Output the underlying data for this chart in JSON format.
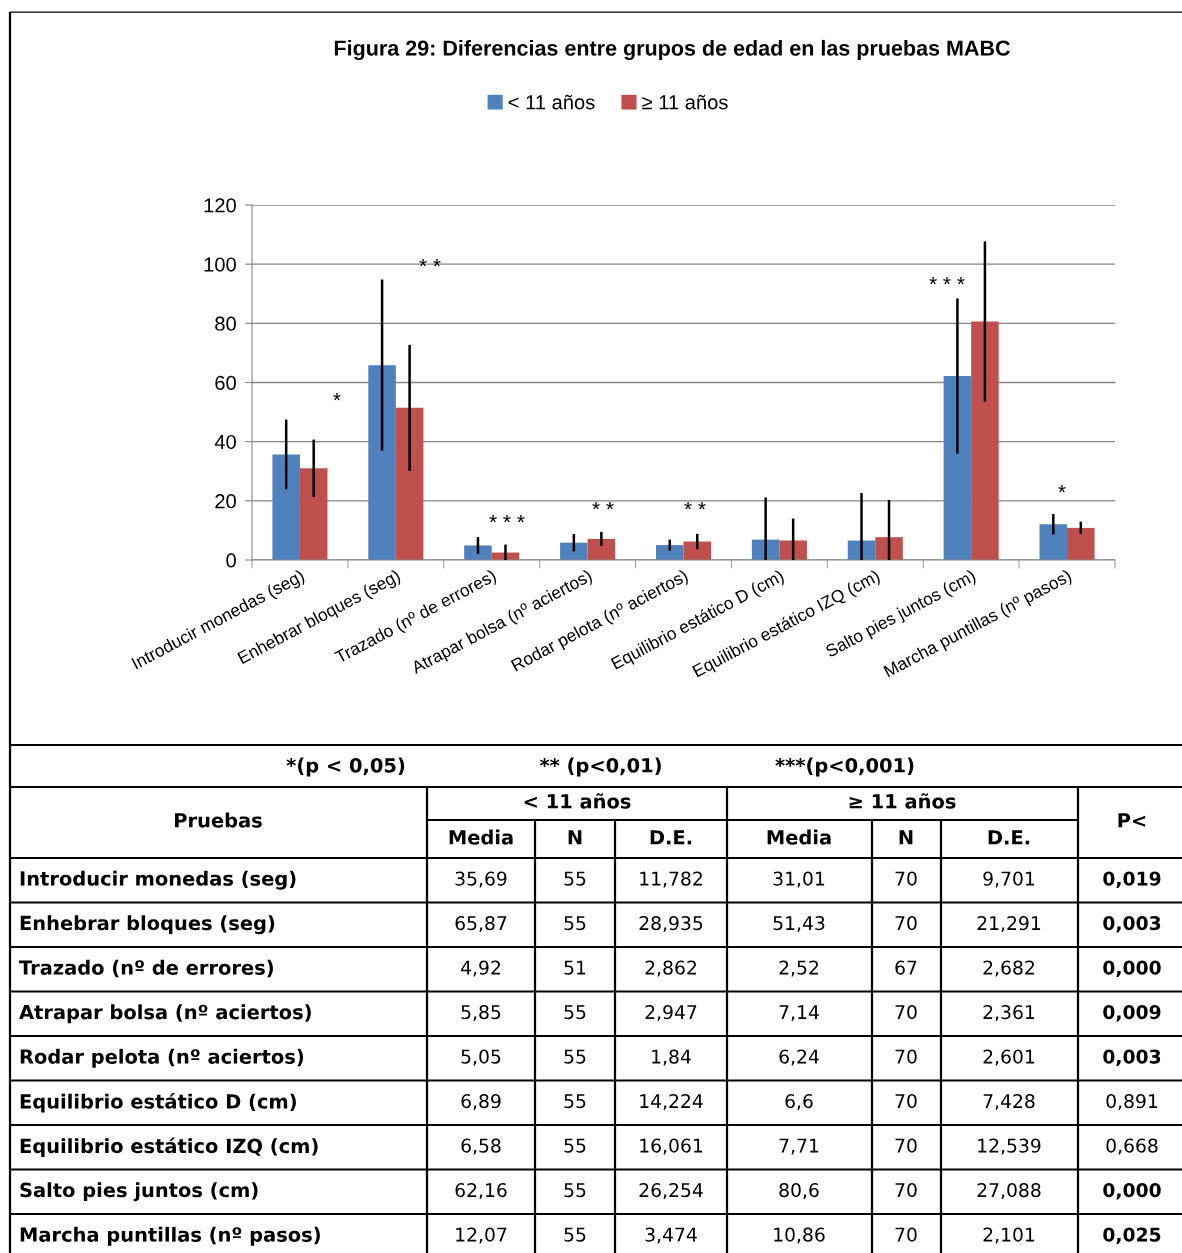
{
  "chart_data": {
    "type": "bar",
    "title": "Figura 29: Diferencias entre grupos de edad en las pruebas MABC",
    "categories": [
      "Introducir monedas (seg)",
      "Enhebrar bloques (seg)",
      "Trazado (nº de errores)",
      "Atrapar bolsa (nº aciertos)",
      "Rodar pelota (nº aciertos)",
      "Equilibrio estático D (cm)",
      "Equilibrio estático IZQ (cm)",
      "Salto pies juntos (cm)",
      "Marcha puntillas (nº pasos)"
    ],
    "series": [
      {
        "name": "< 11 años",
        "color": "#4f81bd",
        "values": [
          35.69,
          65.87,
          4.92,
          5.85,
          5.05,
          6.89,
          6.58,
          62.16,
          12.07
        ],
        "errors": [
          11.782,
          28.935,
          2.862,
          2.947,
          1.84,
          14.224,
          16.061,
          26.254,
          3.474
        ]
      },
      {
        "name": "≥ 11 años",
        "color": "#c0504d",
        "values": [
          31.01,
          51.43,
          2.52,
          7.14,
          6.24,
          6.6,
          7.71,
          80.6,
          10.86
        ],
        "errors": [
          9.701,
          21.291,
          2.682,
          2.361,
          2.601,
          7.428,
          12.539,
          27.088,
          2.101
        ]
      }
    ],
    "ylim": [
      0,
      120
    ],
    "yticks": [
      0,
      20,
      40,
      60,
      80,
      100,
      120
    ],
    "grid": "y",
    "legend": "top",
    "annotations": [
      "*(p < 0,05)",
      "** (p<0,01)",
      "***(p<0,001)",
      "Pruebas",
      "Media",
      "N",
      "D.E.",
      "P<",
      "35,69",
      "55",
      "11,782",
      "31,01",
      "70",
      "9,701",
      "0,019",
      "65,87",
      "55",
      "28,935",
      "51,43",
      "70",
      "21,291",
      "0,003",
      "4,92",
      "51",
      "2,862",
      "2,52",
      "67",
      "2,682",
      "0,000",
      "5,85",
      "55",
      "2,947",
      "7,14",
      "70",
      "2,361",
      "0,009",
      "5,05",
      "55",
      "1,84",
      "6,24",
      "70",
      "2,601",
      "0,003",
      "6,89",
      "55",
      "14,224",
      "6,6",
      "70",
      "7,428",
      "0,891",
      "6,58",
      "55",
      "16,061",
      "7,71",
      "70",
      "12,539",
      "0,668",
      "62,16",
      "55",
      "26,254",
      "80,6",
      "70",
      "27,088",
      "0,000",
      "12,07",
      "55",
      "3,474",
      "10,86",
      "70",
      "2,101",
      "0,025",
      "*",
      "* *",
      "* * *",
      "* *",
      "* *",
      "* * *",
      "*"
    ]
  }
}
